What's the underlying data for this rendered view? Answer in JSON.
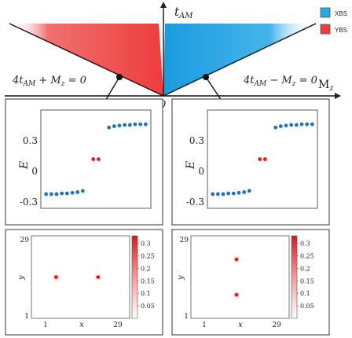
{
  "phase_diagram": {
    "y_axis_label": "t",
    "y_axis_sub": "AM",
    "x_axis_label": "M",
    "x_axis_sub": "z",
    "origin_label": "0",
    "left_boundary": "4t_AM + M_z = 0",
    "right_boundary": "4t_AM − M_z = 0",
    "left_eq": {
      "a": "4t",
      "sub": "AM",
      "b": " + M",
      "sub2": "z",
      "c": " = 0"
    },
    "right_eq": {
      "a": "4t",
      "sub": "AM",
      "b": " − M",
      "sub2": "z",
      "c": " = 0"
    },
    "legend": [
      {
        "label": "XBS",
        "color": "#29a6e6"
      },
      {
        "label": "YBS",
        "color": "#ef3b3b"
      }
    ]
  },
  "chart_data": [
    {
      "type": "scatter",
      "panel": "left-spectrum",
      "ylabel": "E",
      "yticks": [
        "0.3",
        "0",
        "-0.3"
      ],
      "ylim": [
        -0.38,
        0.38
      ],
      "xlim": [
        0,
        21
      ],
      "series": [
        {
          "color": "#1f73b7",
          "x": [
            1,
            2,
            3,
            4,
            5,
            6,
            7,
            8
          ],
          "y": [
            -0.27,
            -0.27,
            -0.27,
            -0.265,
            -0.265,
            -0.26,
            -0.255,
            -0.245
          ]
        },
        {
          "color": "#e41a1c",
          "x": [
            10,
            11
          ],
          "y": [
            0,
            0
          ]
        },
        {
          "color": "#1f73b7",
          "x": [
            13,
            14,
            15,
            16,
            17,
            18,
            19,
            20
          ],
          "y": [
            0.245,
            0.255,
            0.26,
            0.265,
            0.265,
            0.27,
            0.27,
            0.27
          ]
        }
      ]
    },
    {
      "type": "scatter",
      "panel": "right-spectrum",
      "ylabel": "E",
      "yticks": [
        "0.3",
        "0",
        "-0.3"
      ],
      "ylim": [
        -0.38,
        0.38
      ],
      "xlim": [
        0,
        21
      ],
      "series": [
        {
          "color": "#1f73b7",
          "x": [
            1,
            2,
            3,
            4,
            5,
            6,
            7,
            8
          ],
          "y": [
            -0.27,
            -0.27,
            -0.27,
            -0.265,
            -0.265,
            -0.26,
            -0.255,
            -0.245
          ]
        },
        {
          "color": "#e41a1c",
          "x": [
            10,
            11
          ],
          "y": [
            0,
            0
          ]
        },
        {
          "color": "#1f73b7",
          "x": [
            13,
            14,
            15,
            16,
            17,
            18,
            19,
            20
          ],
          "y": [
            0.245,
            0.255,
            0.26,
            0.265,
            0.265,
            0.27,
            0.27,
            0.27
          ]
        }
      ]
    },
    {
      "type": "heatmap",
      "panel": "left-density",
      "xlabel": "x",
      "ylabel": "y",
      "xticks": [
        "1",
        "29"
      ],
      "yticks": [
        "29",
        "1"
      ],
      "xlim": [
        1,
        29
      ],
      "ylim": [
        1,
        29
      ],
      "colorbar_ticks": [
        "0.3",
        "0.25",
        "0.2",
        "0.15",
        "0.1",
        "0.05"
      ],
      "colorbar_max": 0.33,
      "peaks": [
        {
          "x": 8,
          "y": 15,
          "value": 0.33
        },
        {
          "x": 20,
          "y": 15,
          "value": 0.33
        }
      ]
    },
    {
      "type": "heatmap",
      "panel": "right-density",
      "xlabel": "x",
      "ylabel": "y",
      "xticks": [
        "1",
        "29"
      ],
      "yticks": [
        "29",
        "1"
      ],
      "xlim": [
        1,
        29
      ],
      "ylim": [
        1,
        29
      ],
      "colorbar_ticks": [
        "0.3",
        "0.25",
        "0.2",
        "0.15",
        "0.1",
        "0.05"
      ],
      "colorbar_max": 0.33,
      "peaks": [
        {
          "x": 14,
          "y": 21,
          "value": 0.33
        },
        {
          "x": 14,
          "y": 9,
          "value": 0.33
        }
      ]
    }
  ]
}
